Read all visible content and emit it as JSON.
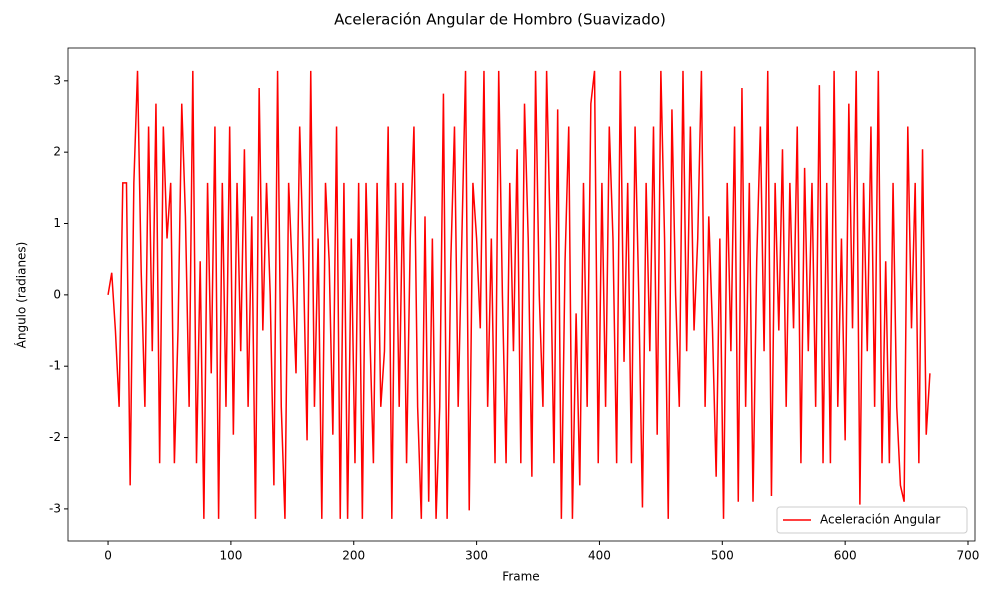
{
  "chart_data": {
    "type": "line",
    "title": "Aceleración Angular de Hombro (Suavizado)",
    "x_label": "Frame",
    "y_label": "Ángulo (radianes)",
    "xlim": [
      -32.6,
      705.7
    ],
    "ylim": [
      -3.45,
      3.46
    ],
    "xticks": [
      0,
      100,
      200,
      300,
      400,
      500,
      600,
      700
    ],
    "yticks": [
      -3,
      -2,
      -1,
      0,
      1,
      2,
      3
    ],
    "grid": false,
    "legend": "lower right",
    "x": [
      0,
      3,
      6,
      9,
      12,
      15,
      18,
      21,
      24,
      27,
      30,
      33,
      36,
      39,
      42,
      45,
      48,
      51,
      54,
      57,
      60,
      63,
      66,
      69,
      72,
      75,
      78,
      81,
      84,
      87,
      90,
      93,
      96,
      99,
      102,
      105,
      108,
      111,
      114,
      117,
      120,
      123,
      126,
      129,
      132,
      135,
      138,
      141,
      144,
      147,
      150,
      153,
      156,
      159,
      162,
      165,
      168,
      171,
      174,
      177,
      180,
      183,
      186,
      189,
      192,
      195,
      198,
      201,
      204,
      207,
      210,
      213,
      216,
      219,
      222,
      225,
      228,
      231,
      234,
      237,
      240,
      243,
      246,
      249,
      252,
      255,
      258,
      261,
      264,
      267,
      270,
      273,
      276,
      279,
      282,
      285,
      288,
      291,
      294,
      297,
      300,
      303,
      306,
      309,
      312,
      315,
      318,
      321,
      324,
      327,
      330,
      333,
      336,
      339,
      342,
      345,
      348,
      351,
      354,
      357,
      360,
      363,
      366,
      369,
      372,
      375,
      378,
      381,
      384,
      387,
      390,
      393,
      396,
      399,
      402,
      405,
      408,
      411,
      414,
      417,
      420,
      423,
      426,
      429,
      432,
      435,
      438,
      441,
      444,
      447,
      450,
      453,
      456,
      459,
      462,
      465,
      468,
      471,
      474,
      477,
      480,
      483,
      486,
      489,
      492,
      495,
      498,
      501,
      504,
      507,
      510,
      513,
      516,
      519,
      522,
      525,
      528,
      531,
      534,
      537,
      540,
      543,
      546,
      549,
      552,
      555,
      558,
      561,
      564,
      567,
      570,
      573,
      576,
      579,
      582,
      585,
      588,
      591,
      594,
      597,
      600,
      603,
      606,
      609,
      612,
      615,
      618,
      621,
      624,
      627,
      630,
      633,
      636,
      639,
      642,
      645,
      648,
      651,
      654,
      657,
      660,
      663,
      666,
      669
    ],
    "series": [
      {
        "name": "Aceleración Angular",
        "color": "#ff0000",
        "values": [
          0,
          0.31,
          -0.5,
          -1.57,
          1.57,
          1.57,
          -2.67,
          1.57,
          3.14,
          0.31,
          -1.57,
          2.36,
          -0.79,
          2.68,
          -2.36,
          2.36,
          0.79,
          1.57,
          -2.36,
          -0.47,
          2.68,
          1.1,
          -1.57,
          3.14,
          -2.36,
          0.47,
          -3.14,
          1.57,
          -1.1,
          2.36,
          -3.14,
          1.57,
          -1.57,
          2.36,
          -1.96,
          1.57,
          -0.79,
          2.04,
          -1.57,
          1.1,
          -3.14,
          2.9,
          -0.5,
          1.57,
          0,
          -2.67,
          3.14,
          -1.57,
          -3.14,
          1.57,
          0.31,
          -1.1,
          2.36,
          0.47,
          -2.04,
          3.14,
          -1.57,
          0.79,
          -3.14,
          1.57,
          0.47,
          -1.96,
          2.36,
          -3.14,
          1.57,
          -3.14,
          0.79,
          -2.36,
          1.57,
          -3.14,
          1.57,
          -0.47,
          -2.36,
          1.57,
          -1.57,
          -0.79,
          2.36,
          -3.14,
          1.57,
          -1.57,
          1.57,
          -2.36,
          0.79,
          2.36,
          -1.57,
          -3.14,
          1.1,
          -2.9,
          0.79,
          -3.14,
          -1.57,
          2.82,
          -3.14,
          0.47,
          2.36,
          -1.57,
          0.79,
          3.14,
          -3.02,
          1.57,
          0.79,
          -0.47,
          3.14,
          -1.57,
          0.79,
          -2.36,
          3.14,
          0,
          -2.36,
          1.57,
          -0.79,
          2.04,
          -2.36,
          2.68,
          0.79,
          -2.55,
          3.14,
          0,
          -1.57,
          3.14,
          0.79,
          -2.36,
          2.6,
          -3.14,
          0.47,
          2.36,
          -3.14,
          -0.26,
          -2.67,
          1.57,
          -1.57,
          2.68,
          3.14,
          -2.36,
          1.57,
          -1.57,
          2.36,
          0.79,
          -2.36,
          3.14,
          -0.94,
          1.57,
          -2.36,
          2.36,
          0,
          -2.98,
          1.57,
          -0.79,
          2.36,
          -1.96,
          3.14,
          0.79,
          -3.14,
          2.6,
          0,
          -1.57,
          3.14,
          -0.79,
          2.36,
          -0.5,
          0.79,
          3.14,
          -1.57,
          1.1,
          -0.47,
          -2.55,
          0.79,
          -3.14,
          1.57,
          -0.79,
          2.36,
          -2.9,
          2.9,
          -1.57,
          1.57,
          -2.9,
          0.47,
          2.36,
          -0.79,
          3.14,
          -2.82,
          1.57,
          -0.5,
          2.04,
          -1.57,
          1.57,
          -0.47,
          2.36,
          -2.36,
          1.78,
          -0.79,
          1.57,
          -1.57,
          2.94,
          -2.36,
          1.57,
          -2.36,
          3.14,
          -1.57,
          0.79,
          -2.04,
          2.68,
          -0.47,
          3.14,
          -2.94,
          1.57,
          -0.79,
          2.36,
          -1.57,
          3.14,
          -2.36,
          0.47,
          -2.36,
          1.57,
          -1.57,
          -2.67,
          -2.9,
          2.36,
          -0.47,
          1.57,
          -2.36,
          2.04,
          -1.96,
          -1.1
        ]
      }
    ]
  }
}
